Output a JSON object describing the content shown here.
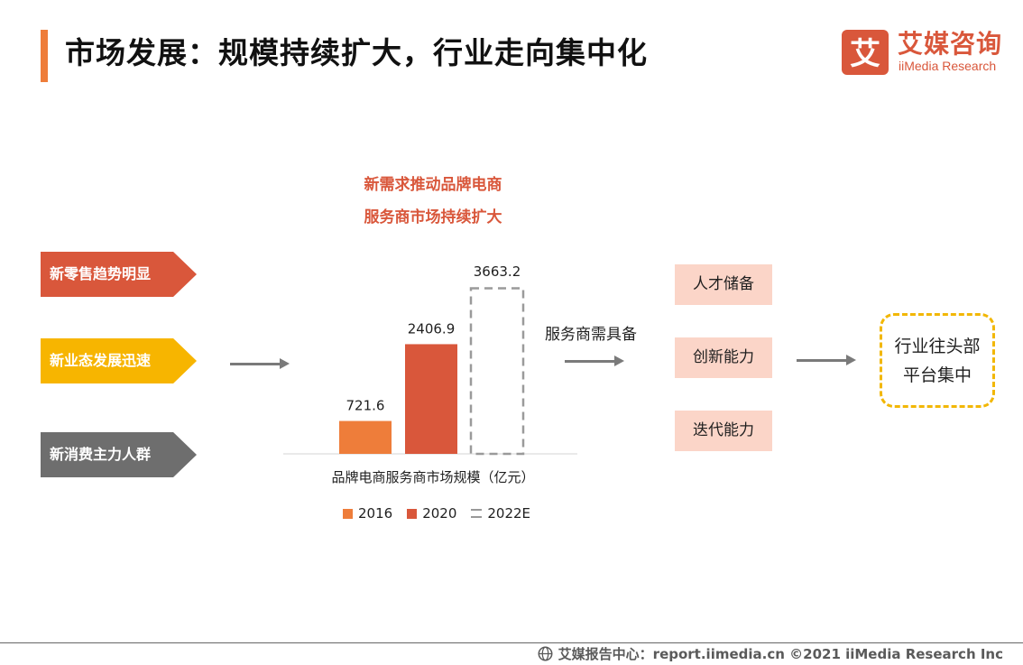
{
  "header": {
    "title": "市场发展：规模持续扩大，行业走向集中化",
    "logo_mark": "艾",
    "logo_cn": "艾媒咨询",
    "logo_en": "iiMedia Research",
    "accent_color": "#ee7d3a",
    "brand_color": "#d9573b"
  },
  "drivers": [
    {
      "label": "新零售趋势明显",
      "color": "#d9573b"
    },
    {
      "label": "新业态发展迅速",
      "color": "#f7b500"
    },
    {
      "label": "新消费主力人群",
      "color": "#6e6e6e"
    }
  ],
  "headline": {
    "line1": "新需求推动品牌电商",
    "line2": "服务商市场持续扩大"
  },
  "chart_data": {
    "type": "bar",
    "categories": [
      "2016",
      "2020",
      "2022E"
    ],
    "values": [
      721.6,
      2406.9,
      3663.2
    ],
    "value_labels": [
      "721.6",
      "2406.9",
      "3663.2"
    ],
    "colors": [
      "#ee7d3a",
      "#d9573b",
      "#9a9a9a"
    ],
    "styles": [
      "solid",
      "solid",
      "dashed"
    ],
    "xlabel": "品牌电商服务商市场规模（亿元）",
    "ylabel": "",
    "ylim": [
      0,
      3663.2
    ],
    "grid": false,
    "legend": "bottom"
  },
  "needs": {
    "label": "服务商需具备",
    "items": [
      "人才储备",
      "创新能力",
      "迭代能力"
    ]
  },
  "result": {
    "line1": "行业往头部",
    "line2": "平台集中"
  },
  "footer": {
    "text": "艾媒报告中心：report.iimedia.cn ©2021  iiMedia Research  Inc",
    "icon": "globe-icon"
  }
}
